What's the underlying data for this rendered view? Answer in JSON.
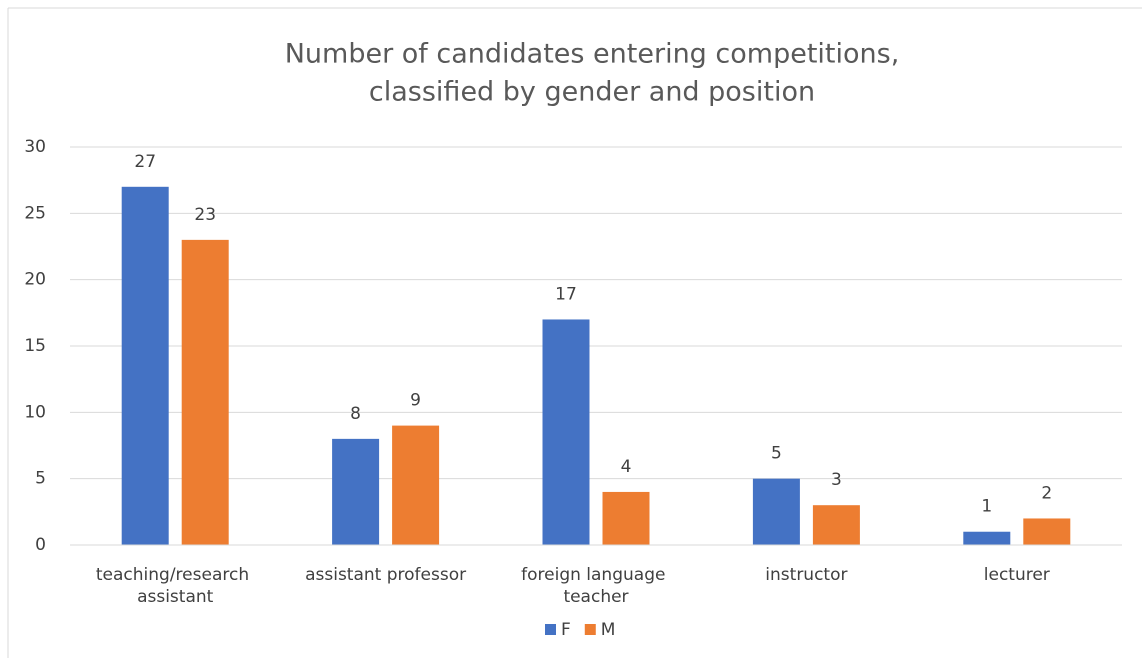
{
  "chart_data": {
    "type": "bar",
    "title": [
      "Number of candidates entering competitions,",
      "classified by gender and position"
    ],
    "categories": [
      "teaching/research assistant",
      "assistant professor",
      "foreign language teacher",
      "instructor",
      "lecturer"
    ],
    "series": [
      {
        "name": "F",
        "color": "#4472c4",
        "values": [
          27,
          8,
          17,
          5,
          1
        ]
      },
      {
        "name": "M",
        "color": "#ed7d31",
        "values": [
          23,
          9,
          4,
          3,
          2
        ]
      }
    ],
    "ylim": [
      0,
      30
    ],
    "yticks": [
      0,
      5,
      10,
      15,
      20,
      25,
      30
    ],
    "grid": true,
    "legend": "bottom"
  }
}
